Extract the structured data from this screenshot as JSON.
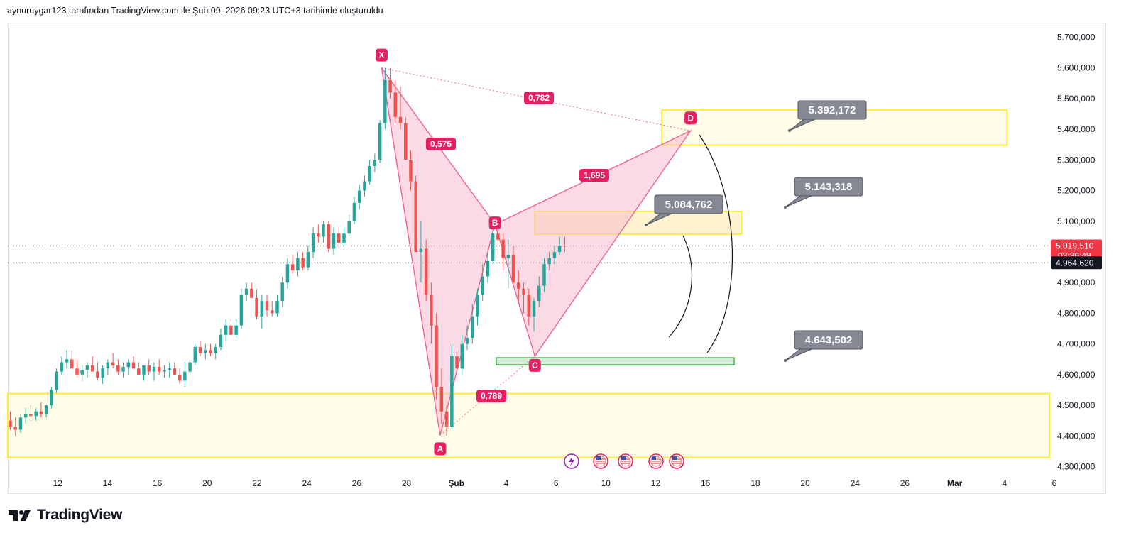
{
  "header": {
    "text": "aynuruygar123 tarafından TradingView.com ile Şub 09, 2026 09:23 UTC+3 tarihinde oluşturuldu"
  },
  "brand": {
    "name": "TradingView",
    "icon": "tradingview-logo-icon"
  },
  "colors": {
    "up": "#26a69a",
    "down": "#ef5350",
    "pattern_fill": "#f8bbd0",
    "pattern_stroke": "#f06292",
    "label_bg": "#e91e63",
    "zone_yellow": "#ffeb3b",
    "zone_green": "#4caf50",
    "callout_bg": "#868993",
    "last_price": "#f23645",
    "ref_price": "#131722"
  },
  "chart_data": {
    "type": "candlestick",
    "y_ticks": [
      "5.700,000",
      "5.600,000",
      "5.500,000",
      "5.400,000",
      "5.300,000",
      "5.200,000",
      "5.100,000",
      "4.900,000",
      "4.800,000",
      "4.700,000",
      "4.600,000",
      "4.500,000",
      "4.400,000",
      "4.300,000"
    ],
    "y_tick_values": [
      5700000,
      5600000,
      5500000,
      5400000,
      5300000,
      5200000,
      5100000,
      4900000,
      4800000,
      4700000,
      4600000,
      4500000,
      4400000,
      4300000
    ],
    "ylim": [
      4285000,
      5745000
    ],
    "x_ticks": [
      "12",
      "14",
      "16",
      "20",
      "22",
      "24",
      "26",
      "28",
      "Şub",
      "4",
      "6",
      "10",
      "12",
      "16",
      "18",
      "20",
      "24",
      "26",
      "Mar",
      "4",
      "6"
    ],
    "x_tick_positions": [
      2,
      4,
      6,
      8,
      10,
      12,
      14,
      16,
      18,
      20,
      22,
      24,
      26,
      28,
      30,
      32,
      34,
      36,
      38,
      40,
      42
    ],
    "x_tick_bold": [
      "Şub",
      "Mar"
    ],
    "xlim": [
      0,
      41.8
    ],
    "candles_open": [
      4450,
      4430,
      4420,
      4460,
      4470,
      4465,
      4480,
      4470,
      4500,
      4550,
      4610,
      4640,
      4650,
      4620,
      4600,
      4615,
      4630,
      4610,
      4590,
      4620,
      4640,
      4630,
      4610,
      4625,
      4640,
      4620,
      4600,
      4630,
      4610,
      4625,
      4610,
      4615,
      4620,
      4600,
      4580,
      4610,
      4640,
      4690,
      4670,
      4680,
      4670,
      4690,
      4730,
      4760,
      4730,
      4760,
      4860,
      4880,
      4850,
      4790,
      4840,
      4810,
      4800,
      4840,
      4900,
      4960,
      4940,
      4980,
      4950,
      5000,
      5060,
      5050,
      5090,
      5010,
      5060,
      5030,
      5060,
      5100,
      5160,
      5200,
      5230,
      5280,
      5300,
      5420,
      5560,
      5520,
      5440,
      5420,
      5300,
      5230,
      5000,
      5010,
      4860,
      4760,
      4560,
      4480,
      4430,
      4660,
      4620,
      4700,
      4720,
      4790,
      4860,
      4920,
      4970,
      5060,
      5040,
      4980,
      4990,
      4900,
      4880,
      4860,
      4790,
      4840,
      4890,
      4960,
      4980,
      5000,
      5020
    ],
    "candles_high": [
      4480,
      4460,
      4470,
      4490,
      4500,
      4490,
      4510,
      4500,
      4560,
      4620,
      4660,
      4680,
      4680,
      4650,
      4630,
      4640,
      4660,
      4640,
      4630,
      4650,
      4670,
      4650,
      4640,
      4650,
      4660,
      4640,
      4630,
      4650,
      4640,
      4650,
      4630,
      4640,
      4640,
      4620,
      4640,
      4650,
      4700,
      4710,
      4700,
      4700,
      4700,
      4750,
      4780,
      4780,
      4780,
      4880,
      4900,
      4900,
      4880,
      4860,
      4860,
      4840,
      4860,
      4920,
      4980,
      4990,
      5000,
      5000,
      5020,
      5080,
      5090,
      5100,
      5100,
      5080,
      5080,
      5080,
      5120,
      5180,
      5220,
      5250,
      5300,
      5320,
      5430,
      5600,
      5600,
      5560,
      5540,
      5440,
      5330,
      5250,
      5100,
      5040,
      4900,
      4800,
      4620,
      4500,
      4700,
      4680,
      4730,
      4760,
      4830,
      4880,
      4960,
      5000,
      5080,
      5100,
      5060,
      5040,
      5020,
      4940,
      4900,
      4880,
      4850,
      4920,
      4980,
      5000,
      5020,
      5050,
      5050
    ],
    "candles_low": [
      4420,
      4400,
      4410,
      4440,
      4450,
      4450,
      4460,
      4460,
      4490,
      4540,
      4600,
      4620,
      4620,
      4590,
      4580,
      4590,
      4610,
      4580,
      4570,
      4600,
      4620,
      4600,
      4590,
      4600,
      4620,
      4600,
      4580,
      4600,
      4580,
      4600,
      4590,
      4590,
      4600,
      4570,
      4560,
      4600,
      4630,
      4660,
      4650,
      4660,
      4650,
      4680,
      4710,
      4730,
      4720,
      4750,
      4840,
      4850,
      4780,
      4750,
      4790,
      4790,
      4790,
      4820,
      4880,
      4930,
      4920,
      4940,
      4940,
      4980,
      5030,
      5030,
      5000,
      4990,
      5010,
      5020,
      5050,
      5090,
      5140,
      5180,
      5220,
      5260,
      5290,
      5400,
      5500,
      5420,
      5400,
      5300,
      5200,
      5050,
      4900,
      4840,
      4700,
      4520,
      4440,
      4400,
      4420,
      4580,
      4600,
      4680,
      4700,
      4760,
      4840,
      4900,
      4960,
      4980,
      4940,
      4880,
      4900,
      4840,
      4800,
      4760,
      4740,
      4820,
      4870,
      4940,
      4960,
      4990,
      5000
    ],
    "candles_close": [
      4430,
      4420,
      4460,
      4470,
      4465,
      4480,
      4470,
      4500,
      4550,
      4610,
      4640,
      4650,
      4620,
      4600,
      4615,
      4630,
      4610,
      4590,
      4620,
      4640,
      4630,
      4610,
      4625,
      4640,
      4620,
      4600,
      4630,
      4610,
      4625,
      4610,
      4615,
      4620,
      4600,
      4580,
      4610,
      4640,
      4690,
      4670,
      4680,
      4670,
      4690,
      4730,
      4760,
      4730,
      4760,
      4860,
      4880,
      4850,
      4790,
      4840,
      4810,
      4800,
      4840,
      4900,
      4960,
      4940,
      4980,
      4950,
      5000,
      5060,
      5050,
      5090,
      5010,
      5060,
      5030,
      5060,
      5100,
      5160,
      5200,
      5230,
      5280,
      5300,
      5420,
      5560,
      5520,
      5440,
      5420,
      5300,
      5230,
      5000,
      5010,
      4860,
      4760,
      4560,
      4480,
      4430,
      4660,
      4620,
      4700,
      4720,
      4790,
      4860,
      4920,
      4970,
      5060,
      5040,
      4980,
      4990,
      4900,
      4880,
      4860,
      4790,
      4840,
      4890,
      4960,
      4980,
      5000,
      5020,
      5019.51
    ],
    "pattern_points": {
      "X": {
        "label": "X",
        "t": 15.0,
        "price": 5600000
      },
      "A": {
        "label": "A",
        "t": 17.35,
        "price": 4402000
      },
      "B": {
        "label": "B",
        "t": 19.55,
        "price": 5090000
      },
      "C": {
        "label": "C",
        "t": 21.15,
        "price": 4660000
      },
      "D": {
        "label": "D",
        "t": 27.4,
        "price": 5395000
      }
    },
    "ratios": [
      {
        "text": "0,575"
      },
      {
        "text": "0,782"
      },
      {
        "text": "1,695"
      },
      {
        "text": "0,789"
      }
    ],
    "zones": [
      {
        "name": "target-d-zone",
        "color": "yellow",
        "t_start": 26.25,
        "t_end": 40.1,
        "top": 5463000,
        "bottom": 5348000
      },
      {
        "name": "bc-extension-zone",
        "color": "yellow",
        "t_start": 21.15,
        "t_end": 29.45,
        "top": 5132000,
        "bottom": 5058000
      },
      {
        "name": "support-c-zone",
        "color": "green",
        "t_start": 19.6,
        "t_end": 29.15,
        "top": 4655000,
        "bottom": 4632000
      },
      {
        "name": "lower-demand-zone",
        "color": "yellow",
        "t_start": 0,
        "t_end": 41.8,
        "top": 4538000,
        "bottom": 4330000
      }
    ],
    "callouts": [
      {
        "text": "5.392,172"
      },
      {
        "text": "5.143,318"
      },
      {
        "text": "5.084,762"
      },
      {
        "text": "4.643,502"
      }
    ],
    "last_price": {
      "value": "5.019,510",
      "countdown": "03:36:49"
    },
    "ref_price": {
      "value": "4.964,620"
    }
  }
}
